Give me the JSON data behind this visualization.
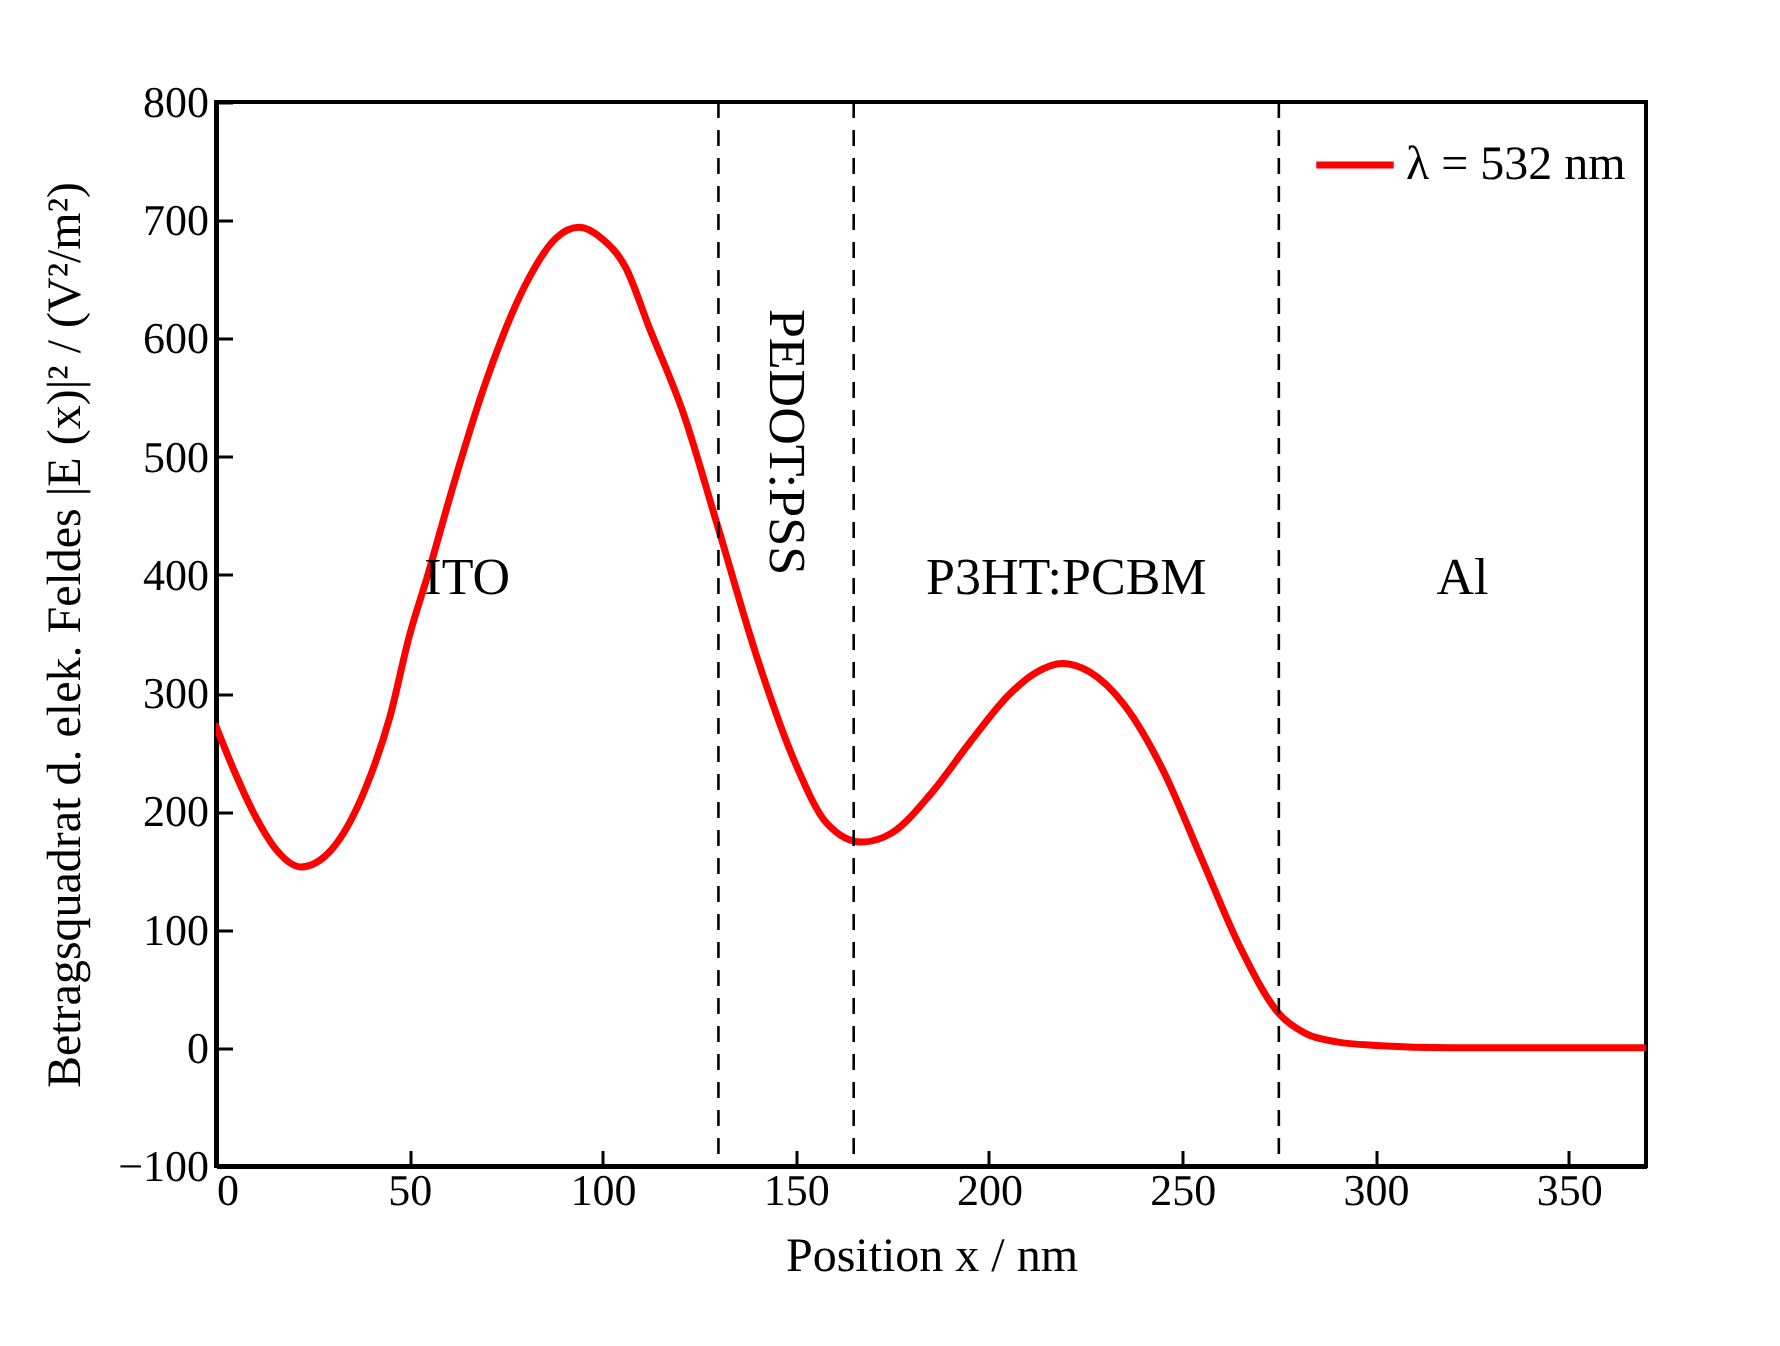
{
  "chart_data": {
    "type": "line",
    "xlabel": "Position  x / nm",
    "ylabel": "Betragsquadrat d. elek. Feldes  |E (x)|² / (V²/m²)",
    "xlim": [
      0,
      370
    ],
    "ylim": [
      -100,
      800
    ],
    "xticks": [
      0,
      50,
      100,
      150,
      200,
      250,
      300,
      350
    ],
    "yticks": [
      -100,
      0,
      100,
      200,
      300,
      400,
      500,
      600,
      700,
      800
    ],
    "grid": false,
    "legend": "top right",
    "line_style": "solid",
    "marker": "none",
    "ref_lines": [
      {
        "axis": "x",
        "value": 130,
        "color": "#000000",
        "line_style": "dashed"
      },
      {
        "axis": "x",
        "value": 165,
        "color": "#000000",
        "line_style": "dashed"
      },
      {
        "axis": "x",
        "value": 275,
        "color": "#000000",
        "line_style": "dashed"
      }
    ],
    "annotations": [
      "ITO",
      "PEDOT:PSS",
      "P3HT:PCBM",
      "Al"
    ],
    "x": [
      0,
      5,
      10,
      15,
      22,
      30,
      39,
      45,
      50,
      55,
      60,
      70,
      80,
      88,
      94,
      100,
      106,
      112,
      121,
      130,
      140,
      150,
      158,
      167,
      175,
      185,
      195,
      205,
      212,
      219,
      226,
      235,
      245,
      255,
      265,
      275,
      282,
      290,
      300,
      320,
      370
    ],
    "series": [
      {
        "name": "λ = 532 nm",
        "color": "#ff0000",
        "values": [
          272,
          232,
          197,
          170,
          153,
          168,
          222,
          280,
          348,
          402,
          460,
          565,
          645,
          685,
          694,
          684,
          660,
          610,
          536,
          439,
          330,
          240,
          190,
          174,
          182,
          215,
          258,
          298,
          317,
          325,
          318,
          290,
          235,
          160,
          85,
          29,
          12,
          5,
          2,
          0,
          0
        ]
      }
    ]
  }
}
